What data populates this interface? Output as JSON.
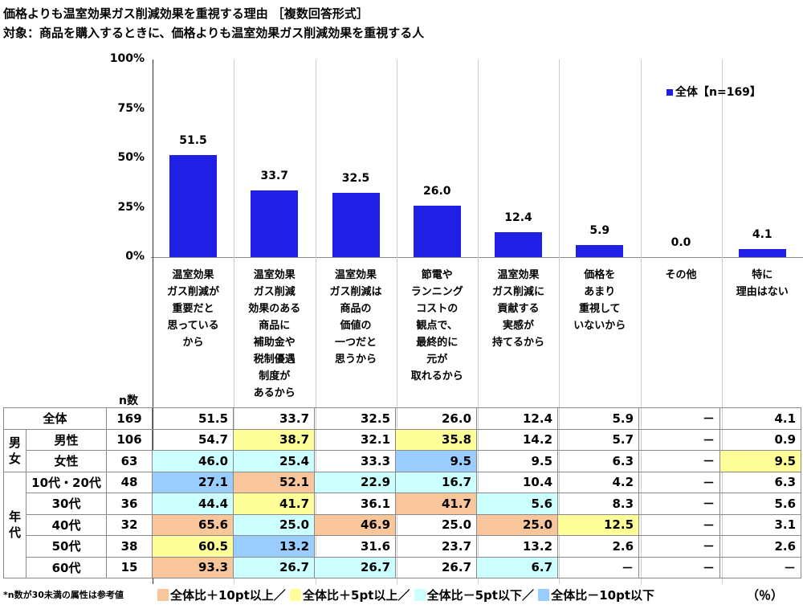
{
  "title": "価格よりも温室効果ガス削減効果を重視する理由 ［複数回答形式］",
  "subtitle": "対象：商品を購入するときに、価格よりも温室効果ガス削減効果を重視する人",
  "chart_data": {
    "type": "bar",
    "categories": [
      "温室効果\nガス削減が\n重要だと\n思っている\nから",
      "温室効果\nガス削減\n効果のある\n商品に\n補助金や\n税制優遇\n制度が\nあるから",
      "温室効果\nガス削減は\n商品の\n価値の\n一つだと\n思うから",
      "節電や\nランニング\nコストの\n観点で、\n最終的に\n元が\n取れるから",
      "温室効果\nガス削減に\n貢献する\n実感が\n持てるから",
      "価格を\nあまり\n重視して\nいないから",
      "その他",
      "特に\n理由はない"
    ],
    "series": [
      {
        "name": "全体【n=169】",
        "values": [
          51.5,
          33.7,
          32.5,
          26.0,
          12.4,
          5.9,
          0.0,
          4.1
        ],
        "color": "#1f1fe6"
      }
    ],
    "data_labels": [
      "51.5",
      "33.7",
      "32.5",
      "26.0",
      "12.4",
      "5.9",
      "0.0",
      "4.1"
    ],
    "yticks": [
      "100%",
      "75%",
      "50%",
      "25%",
      "0%"
    ],
    "ylim": [
      0,
      100
    ],
    "legend_placement": "top-right",
    "grid": false
  },
  "table": {
    "n_header": "n数",
    "groups": [
      {
        "label": "男\n女",
        "rows": 2
      },
      {
        "label": "年\n代",
        "rows": 6
      }
    ],
    "rows": [
      {
        "label": "全体",
        "n": "169",
        "values": [
          "51.5",
          "33.7",
          "32.5",
          "26.0",
          "12.4",
          "5.9",
          "－",
          "4.1"
        ],
        "marks": [
          "",
          "",
          "",
          "",
          "",
          "",
          "",
          ""
        ]
      },
      {
        "label": "男性",
        "n": "106",
        "values": [
          "54.7",
          "38.7",
          "32.1",
          "35.8",
          "14.2",
          "5.7",
          "－",
          "0.9"
        ],
        "marks": [
          "",
          "y",
          "",
          "y",
          "",
          "",
          "",
          ""
        ]
      },
      {
        "label": "女性",
        "n": "63",
        "values": [
          "46.0",
          "25.4",
          "33.3",
          "9.5",
          "9.5",
          "6.3",
          "－",
          "9.5"
        ],
        "marks": [
          "c",
          "c",
          "",
          "b",
          "",
          "",
          "",
          "y"
        ]
      },
      {
        "label": "10代・20代",
        "n": "48",
        "values": [
          "27.1",
          "52.1",
          "22.9",
          "16.7",
          "10.4",
          "4.2",
          "－",
          "6.3"
        ],
        "marks": [
          "b",
          "o",
          "c",
          "c",
          "",
          "",
          "",
          ""
        ]
      },
      {
        "label": "30代",
        "n": "36",
        "values": [
          "44.4",
          "41.7",
          "36.1",
          "41.7",
          "5.6",
          "8.3",
          "－",
          "5.6"
        ],
        "marks": [
          "c",
          "y",
          "",
          "o",
          "c",
          "",
          "",
          ""
        ]
      },
      {
        "label": "40代",
        "n": "32",
        "values": [
          "65.6",
          "25.0",
          "46.9",
          "25.0",
          "25.0",
          "12.5",
          "－",
          "3.1"
        ],
        "marks": [
          "o",
          "c",
          "o",
          "",
          "o",
          "y",
          "",
          ""
        ]
      },
      {
        "label": "50代",
        "n": "38",
        "values": [
          "60.5",
          "13.2",
          "31.6",
          "23.7",
          "13.2",
          "2.6",
          "－",
          "2.6"
        ],
        "marks": [
          "y",
          "b",
          "",
          "",
          "",
          "",
          "",
          ""
        ]
      },
      {
        "label": "60代",
        "n": "15",
        "values": [
          "93.3",
          "26.7",
          "26.7",
          "26.7",
          "6.7",
          "－",
          "－",
          "－"
        ],
        "marks": [
          "o",
          "c",
          "c",
          "",
          "c",
          "",
          "",
          ""
        ]
      }
    ]
  },
  "highlight_colors": {
    "o": "#f9c59b",
    "y": "#ffff99",
    "c": "#ccffff",
    "b": "#99ccff"
  },
  "footnote": "*n数が30未満の属性は参考値",
  "keys": [
    "全体比＋10pt以上／",
    "全体比＋5pt以上／",
    "全体比－5pt以下／",
    "全体比－10pt以下"
  ],
  "unit": "（％）"
}
